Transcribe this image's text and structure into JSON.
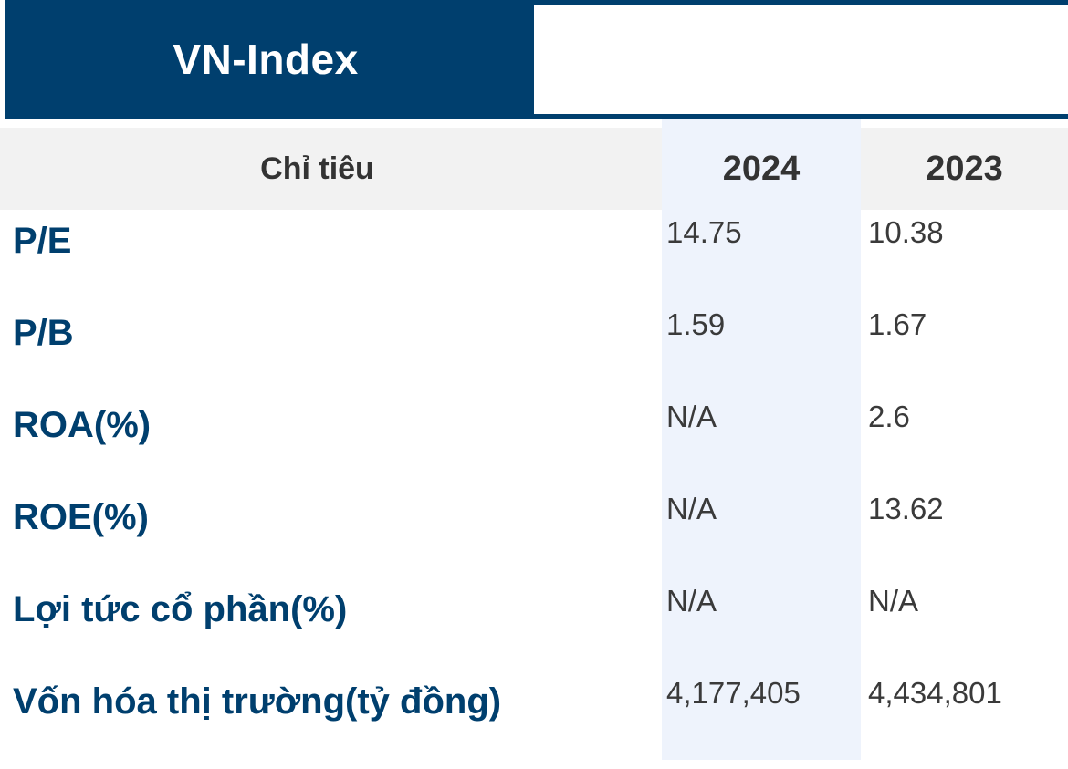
{
  "tabs": {
    "active_label": "VN-Index",
    "inactive_label": ""
  },
  "table": {
    "headers": {
      "label": "Chỉ tiêu",
      "year1": "2024",
      "year2": "2023"
    },
    "rows": [
      {
        "name": "P/E",
        "v2024": "14.75",
        "v2023": "10.38"
      },
      {
        "name": "P/B",
        "v2024": "1.59",
        "v2023": "1.67"
      },
      {
        "name": "ROA(%)",
        "v2024": "N/A",
        "v2023": "2.6"
      },
      {
        "name": "ROE(%)",
        "v2024": "N/A",
        "v2023": "13.62"
      },
      {
        "name": "Lợi tức cổ phần(%)",
        "v2024": "N/A",
        "v2023": "N/A"
      },
      {
        "name": "Vốn hóa thị trường(tỷ đồng)",
        "v2024": "4,177,405",
        "v2023": "4,434,801"
      }
    ]
  },
  "colors": {
    "brand_navy": "#003f6e",
    "header_bg": "#f2f2f2",
    "highlight_column": "#eef3fc",
    "value_text": "#3a3a3a"
  }
}
